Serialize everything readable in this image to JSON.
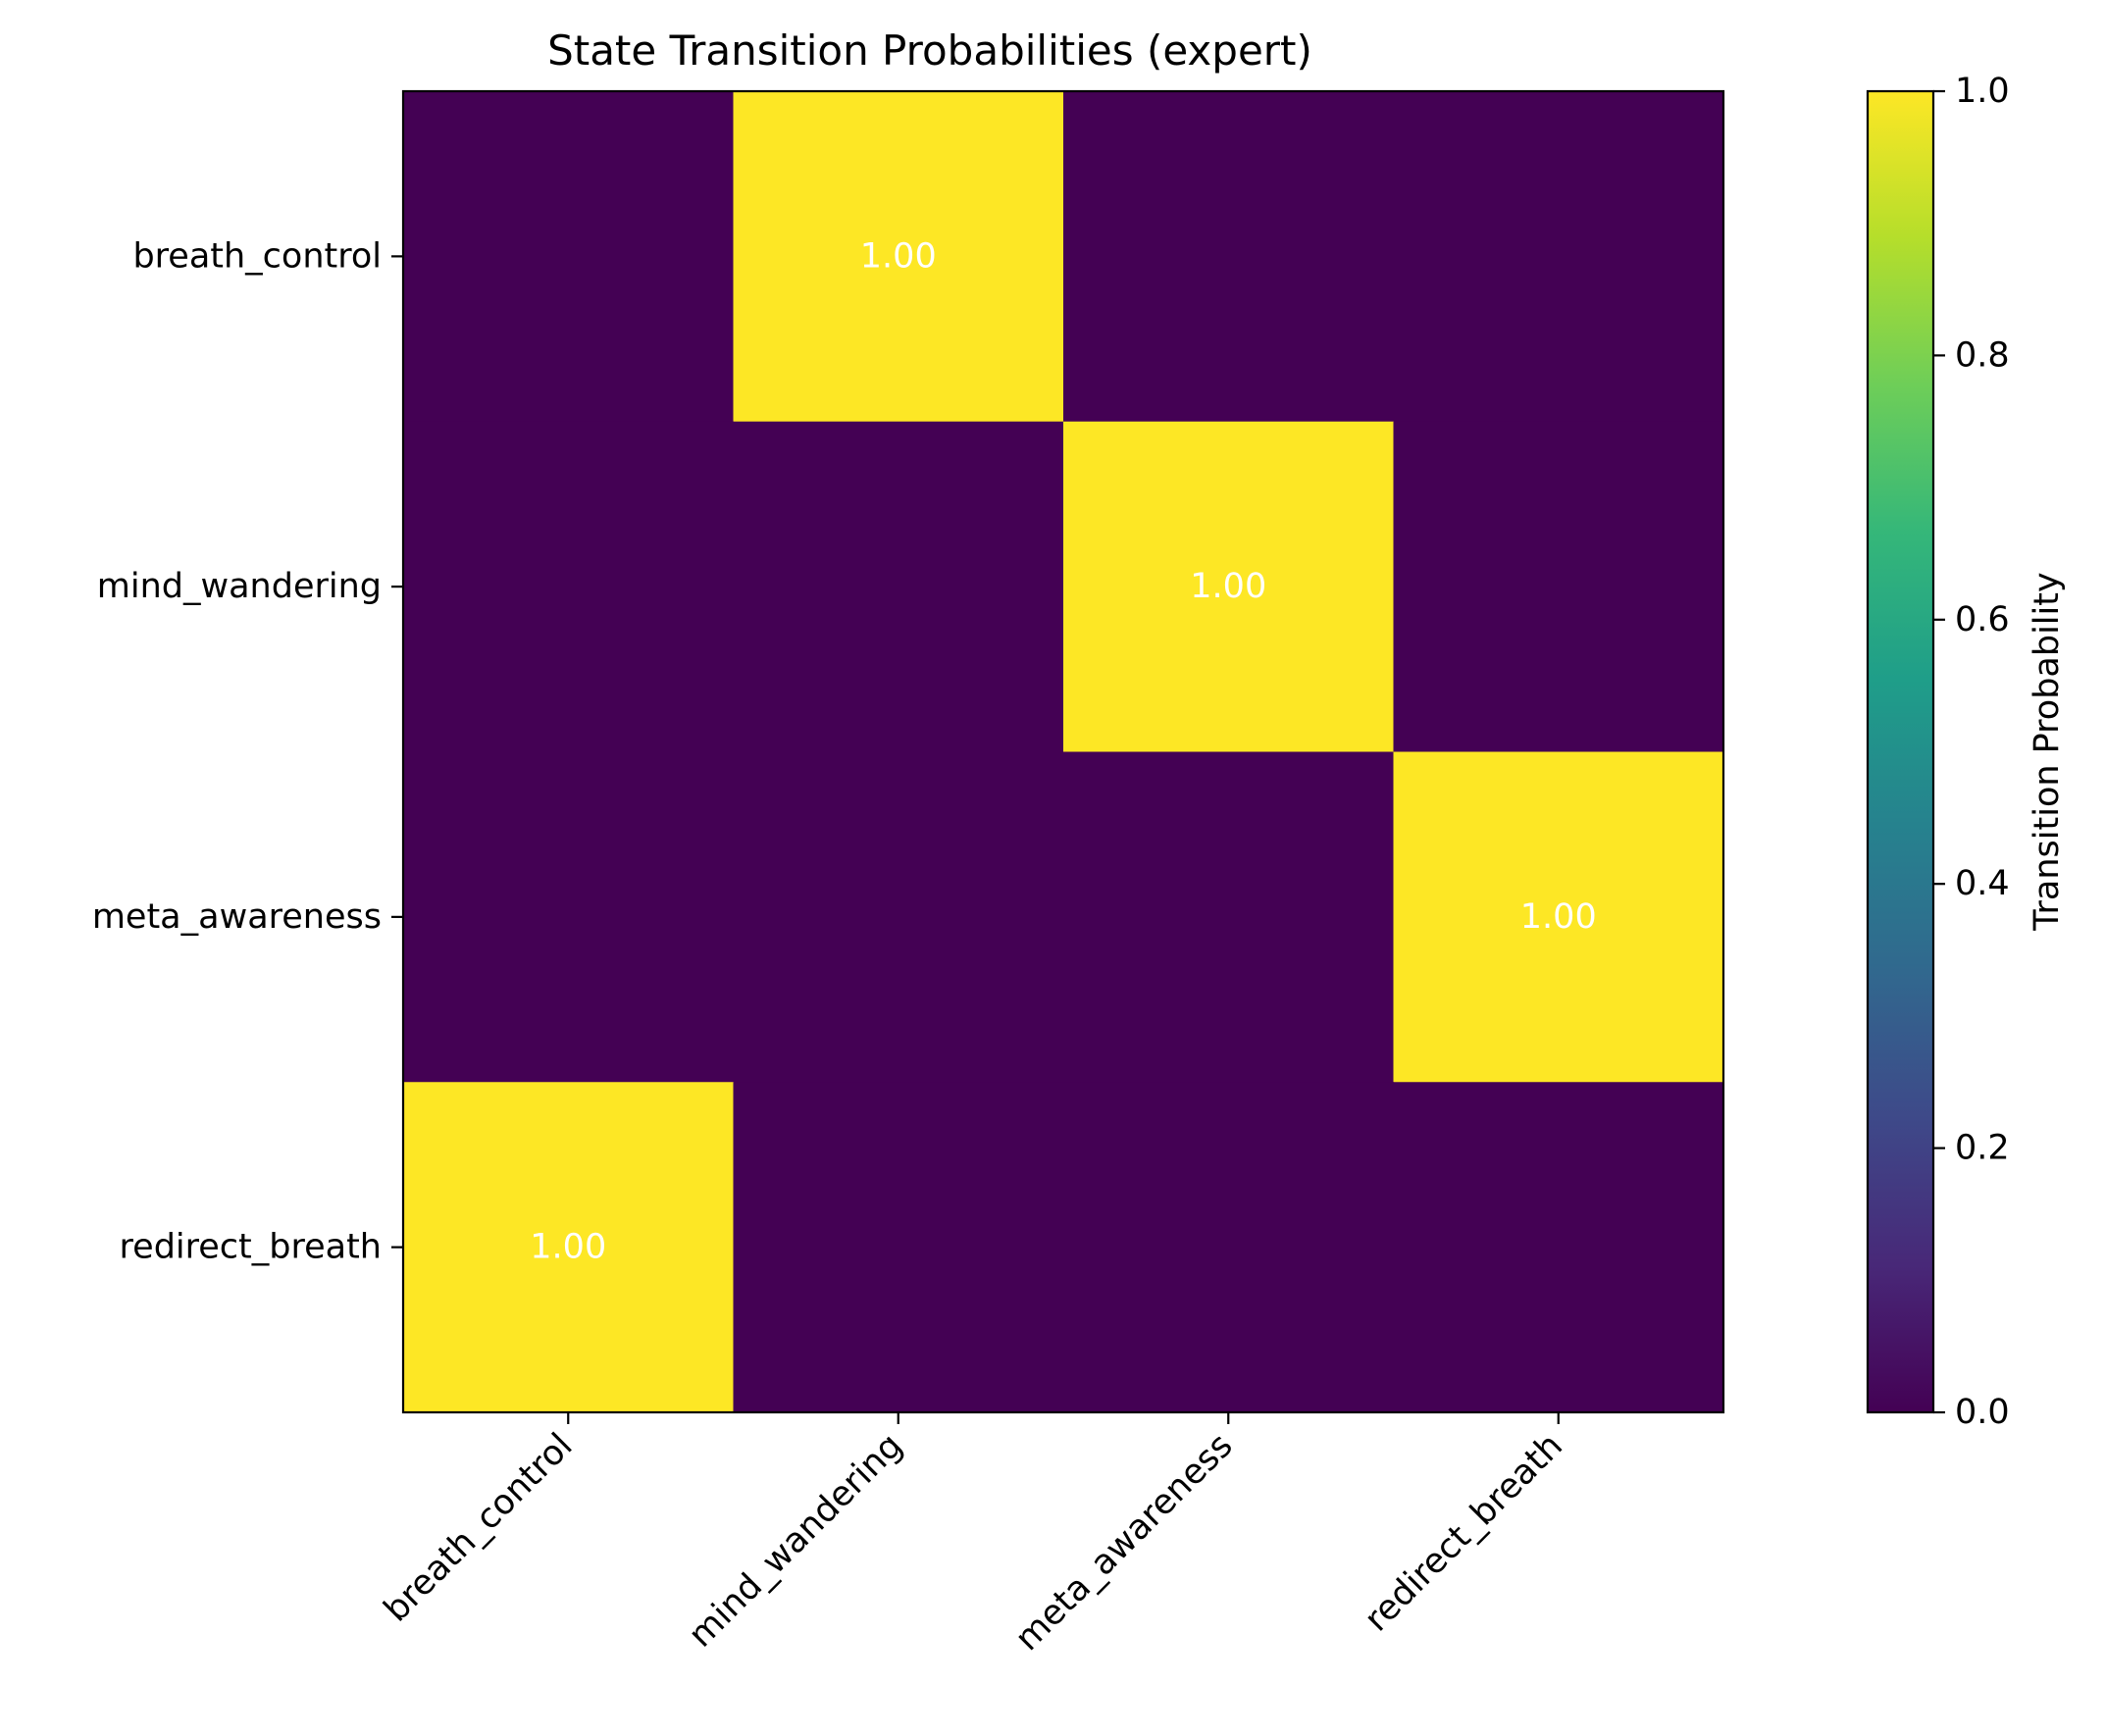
{
  "chart_data": {
    "type": "heatmap",
    "title": "State Transition Probabilities (expert)",
    "xlabel": "",
    "ylabel": "",
    "x_categories": [
      "breath_control",
      "mind_wandering",
      "meta_awareness",
      "redirect_breath"
    ],
    "y_categories": [
      "breath_control",
      "mind_wandering",
      "meta_awareness",
      "redirect_breath"
    ],
    "values": [
      [
        0,
        1,
        0,
        0
      ],
      [
        0,
        0,
        1,
        0
      ],
      [
        0,
        0,
        0,
        1
      ],
      [
        1,
        0,
        0,
        0
      ]
    ],
    "cell_labels": [
      [
        "",
        "1.00",
        "",
        ""
      ],
      [
        "",
        "",
        "1.00",
        ""
      ],
      [
        "",
        "",
        "",
        "1.00"
      ],
      [
        "1.00",
        "",
        "",
        ""
      ]
    ],
    "x_tick_rotation_deg": 45,
    "colormap": "viridis",
    "colormap_stops": [
      "#440154",
      "#482878",
      "#3e4989",
      "#31688e",
      "#26828e",
      "#1f9e89",
      "#35b779",
      "#6ece58",
      "#b5de2b",
      "#fde725"
    ],
    "vmin": 0,
    "vmax": 1,
    "cell_label_color": "#ffffff",
    "colorbar": {
      "label": "Transition Probability",
      "ticks": [
        "0.0",
        "0.2",
        "0.4",
        "0.6",
        "0.8",
        "1.0"
      ],
      "tick_values": [
        0,
        0.2,
        0.4,
        0.6,
        0.8,
        1.0
      ]
    }
  }
}
